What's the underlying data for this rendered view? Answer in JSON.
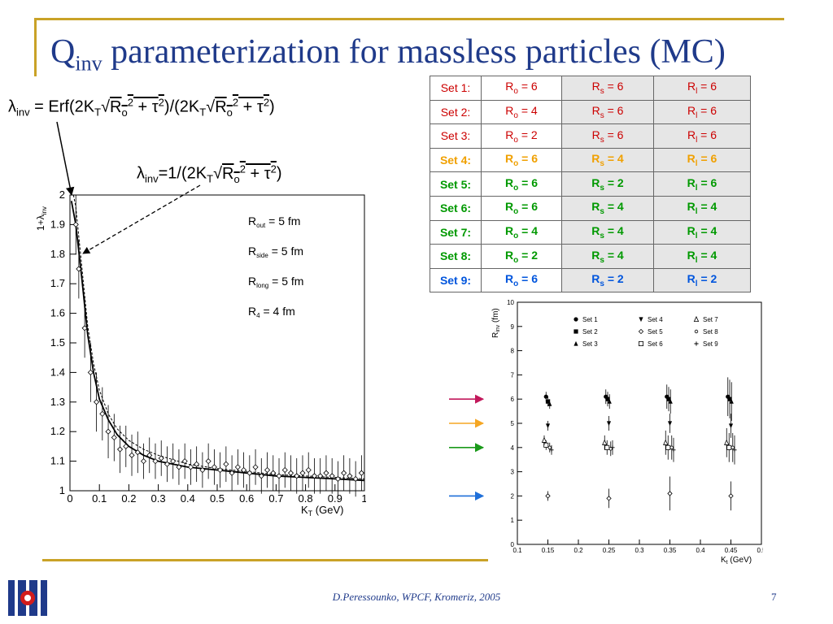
{
  "title": {
    "q": "Q",
    "q_sub": "inv",
    "rest": " parameterization for massless particles (MC)"
  },
  "formula1": {
    "a": "λ",
    "a_sub": "inv",
    "b": " = Erf(2K",
    "b_sub": "T",
    "c": "√",
    "d": "R",
    "d_sub": "o",
    "d_sup": "2",
    "e": " + τ",
    "e_sup": "2",
    "f": ")/(2K",
    "f_sub": "T",
    "g": "√",
    "h": "R",
    "h_sub": "o",
    "h_sup": "2",
    "i": " + τ",
    "i_sup": "2",
    "j": ")"
  },
  "formula2": {
    "a": "λ",
    "a_sub": "inv",
    "b": "=1/(2K",
    "b_sub": "T",
    "c": "√",
    "d": "R",
    "d_sub": "o",
    "d_sup": "2",
    "e": " + τ",
    "e_sup": "2",
    "f": ")"
  },
  "table": {
    "rows": [
      {
        "set": "Set 1:",
        "ro": "6",
        "rs": "6",
        "rl": "6",
        "color": "#cc0000",
        "bold": false
      },
      {
        "set": "Set 2:",
        "ro": "4",
        "rs": "6",
        "rl": "6",
        "color": "#cc0000",
        "bold": false
      },
      {
        "set": "Set 3:",
        "ro": "2",
        "rs": "6",
        "rl": "6",
        "color": "#cc0000",
        "bold": false
      },
      {
        "set": "Set 4:",
        "ro": "6",
        "rs": "4",
        "rl": "6",
        "color": "#f0a000",
        "bold": true
      },
      {
        "set": "Set 5:",
        "ro": "6",
        "rs": "2",
        "rl": "6",
        "color": "#009900",
        "bold": true
      },
      {
        "set": "Set 6:",
        "ro": "6",
        "rs": "4",
        "rl": "4",
        "color": "#009900",
        "bold": true
      },
      {
        "set": "Set 7:",
        "ro": "4",
        "rs": "4",
        "rl": "4",
        "color": "#009900",
        "bold": true
      },
      {
        "set": "Set 8:",
        "ro": "2",
        "rs": "4",
        "rl": "4",
        "color": "#009900",
        "bold": true
      },
      {
        "set": "Set 9:",
        "ro": "6",
        "rs": "2",
        "rl": "2",
        "color": "#0055dd",
        "bold": true
      }
    ],
    "labels": {
      "r": "R",
      "o": "o",
      "s": "s",
      "l": "l",
      "eq": " = "
    }
  },
  "chart_data": [
    {
      "type": "line",
      "ylabel": "1+λ",
      "ylabel_sub": "inv",
      "xlabel": "K",
      "xlabel_sub": "T",
      "xlabel_unit": "(GeV)",
      "xlim": [
        0,
        1
      ],
      "ylim": [
        1,
        2
      ],
      "xticks": [
        "0",
        "0.1",
        "0.2",
        "0.3",
        "0.4",
        "0.5",
        "0.6",
        "0.7",
        "0.8",
        "0.9",
        "1"
      ],
      "yticks": [
        "1",
        "1.1",
        "1.2",
        "1.3",
        "1.4",
        "1.5",
        "1.6",
        "1.7",
        "1.8",
        "1.9",
        "2"
      ],
      "annotations": [
        {
          "r": "R",
          "sub": "out",
          "val": " = 5 fm"
        },
        {
          "r": "R",
          "sub": "side",
          "val": " = 5 fm"
        },
        {
          "r": "R",
          "sub": "long",
          "val": " = 5 fm"
        },
        {
          "r": "R",
          "sub": "4",
          "val": " = 4 fm"
        }
      ],
      "series": [
        {
          "style": "solid",
          "x": [
            0.005,
            0.02,
            0.04,
            0.06,
            0.08,
            0.1,
            0.13,
            0.16,
            0.2,
            0.25,
            0.3,
            0.35,
            0.4,
            0.5,
            0.6,
            0.7,
            0.8,
            0.9,
            1.0
          ],
          "y": [
            1.98,
            1.9,
            1.72,
            1.53,
            1.4,
            1.31,
            1.24,
            1.19,
            1.15,
            1.12,
            1.1,
            1.09,
            1.08,
            1.07,
            1.06,
            1.05,
            1.045,
            1.04,
            1.035
          ]
        },
        {
          "style": "dashed",
          "x": [
            0.012,
            0.02,
            0.04,
            0.06,
            0.08,
            0.1,
            0.13,
            0.16,
            0.2,
            0.25,
            0.3,
            0.4,
            0.5,
            0.6,
            0.7,
            0.8,
            0.9,
            1.0
          ],
          "y": [
            2.0,
            1.96,
            1.76,
            1.56,
            1.43,
            1.34,
            1.26,
            1.21,
            1.17,
            1.14,
            1.12,
            1.09,
            1.075,
            1.065,
            1.055,
            1.05,
            1.045,
            1.04
          ]
        }
      ],
      "points": {
        "x": [
          0.02,
          0.03,
          0.05,
          0.07,
          0.09,
          0.11,
          0.13,
          0.15,
          0.17,
          0.19,
          0.21,
          0.23,
          0.25,
          0.27,
          0.29,
          0.31,
          0.33,
          0.35,
          0.37,
          0.39,
          0.41,
          0.43,
          0.45,
          0.47,
          0.49,
          0.51,
          0.53,
          0.55,
          0.57,
          0.59,
          0.61,
          0.63,
          0.65,
          0.67,
          0.69,
          0.71,
          0.73,
          0.75,
          0.77,
          0.79,
          0.81,
          0.83,
          0.85,
          0.87,
          0.89,
          0.91,
          0.93,
          0.95,
          0.97,
          0.99
        ],
        "y": [
          1.9,
          1.75,
          1.55,
          1.4,
          1.3,
          1.26,
          1.2,
          1.18,
          1.14,
          1.15,
          1.12,
          1.13,
          1.1,
          1.12,
          1.1,
          1.11,
          1.09,
          1.1,
          1.08,
          1.1,
          1.08,
          1.09,
          1.07,
          1.1,
          1.08,
          1.07,
          1.09,
          1.06,
          1.08,
          1.07,
          1.06,
          1.08,
          1.05,
          1.07,
          1.06,
          1.05,
          1.07,
          1.06,
          1.05,
          1.06,
          1.07,
          1.05,
          1.05,
          1.06,
          1.05,
          1.04,
          1.06,
          1.05,
          1.04,
          1.06
        ],
        "err": [
          0.1,
          0.1,
          0.1,
          0.1,
          0.1,
          0.09,
          0.09,
          0.08,
          0.08,
          0.07,
          0.07,
          0.07,
          0.06,
          0.06,
          0.06,
          0.06,
          0.06,
          0.06,
          0.06,
          0.06,
          0.06,
          0.06,
          0.06,
          0.06,
          0.06,
          0.06,
          0.06,
          0.06,
          0.06,
          0.06,
          0.06,
          0.06,
          0.06,
          0.06,
          0.06,
          0.06,
          0.06,
          0.06,
          0.06,
          0.06,
          0.06,
          0.06,
          0.06,
          0.06,
          0.06,
          0.06,
          0.06,
          0.06,
          0.06,
          0.06
        ]
      }
    },
    {
      "type": "scatter",
      "ylabel": "R",
      "ylabel_sub": "inv",
      "ylabel_unit": "(fm)",
      "xlabel": "K",
      "xlabel_sub": "t",
      "xlabel_unit": "(GeV)",
      "xlim": [
        0.1,
        0.5
      ],
      "ylim": [
        0,
        10
      ],
      "xticks": [
        "0.1",
        "0.15",
        "0.2",
        "0.25",
        "0.3",
        "0.35",
        "0.4",
        "0.45",
        "0.5"
      ],
      "yticks": [
        "0",
        "1",
        "2",
        "3",
        "4",
        "5",
        "6",
        "7",
        "8",
        "9",
        "10"
      ],
      "legend": [
        "Set 1",
        "Set 4",
        "Set 7",
        "Set 2",
        "Set 5",
        "Set 8",
        "Set 3",
        "Set 6",
        "Set 9"
      ],
      "legend_markers": [
        "circle",
        "tri-down",
        "tri-open",
        "square",
        "diamond-open",
        "star-open",
        "tri-up",
        "square-open",
        "cross-open"
      ],
      "series": [
        {
          "name": "Set 1",
          "marker": "circle",
          "x": [
            0.147,
            0.245,
            0.345,
            0.445
          ],
          "y": [
            6.1,
            6.1,
            6.1,
            6.1
          ],
          "err": [
            0.2,
            0.3,
            0.5,
            0.8
          ]
        },
        {
          "name": "Set 2",
          "marker": "square",
          "x": [
            0.15,
            0.248,
            0.348,
            0.448
          ],
          "y": [
            5.9,
            6.0,
            6.0,
            6.0
          ],
          "err": [
            0.2,
            0.3,
            0.5,
            0.8
          ]
        },
        {
          "name": "Set 3",
          "marker": "tri-up",
          "x": [
            0.153,
            0.251,
            0.351,
            0.451
          ],
          "y": [
            5.8,
            5.9,
            5.9,
            5.9
          ],
          "err": [
            0.2,
            0.3,
            0.5,
            0.8
          ]
        },
        {
          "name": "Set 4",
          "marker": "tri-down",
          "x": [
            0.15,
            0.25,
            0.35,
            0.45
          ],
          "y": [
            4.9,
            5.0,
            5.0,
            4.9
          ],
          "err": [
            0.2,
            0.3,
            0.4,
            0.5
          ]
        },
        {
          "name": "Set 5",
          "marker": "diamond-open",
          "x": [
            0.15,
            0.25,
            0.35,
            0.45
          ],
          "y": [
            2.0,
            1.9,
            2.1,
            2.0
          ],
          "err": [
            0.2,
            0.4,
            0.7,
            0.6
          ]
        },
        {
          "name": "Set 6",
          "marker": "square-open",
          "x": [
            0.147,
            0.247,
            0.347,
            0.447
          ],
          "y": [
            4.1,
            4.0,
            4.0,
            4.0
          ],
          "err": [
            0.2,
            0.3,
            0.5,
            0.6
          ]
        },
        {
          "name": "Set 7",
          "marker": "tri-open",
          "x": [
            0.144,
            0.243,
            0.343,
            0.443
          ],
          "y": [
            4.3,
            4.2,
            4.2,
            4.2
          ],
          "err": [
            0.2,
            0.3,
            0.5,
            0.6
          ]
        },
        {
          "name": "Set 8",
          "marker": "star-open",
          "x": [
            0.153,
            0.253,
            0.353,
            0.453
          ],
          "y": [
            4.0,
            3.95,
            4.0,
            4.0
          ],
          "err": [
            0.2,
            0.3,
            0.5,
            0.6
          ]
        },
        {
          "name": "Set 9",
          "marker": "cross-open",
          "x": [
            0.156,
            0.256,
            0.356,
            0.456
          ],
          "y": [
            3.9,
            4.0,
            3.9,
            3.9
          ],
          "err": [
            0.2,
            0.3,
            0.5,
            0.6
          ]
        }
      ],
      "arrows": [
        {
          "y": 6.0,
          "color": "#c2185b"
        },
        {
          "y": 5.0,
          "color": "#f5a623"
        },
        {
          "y": 4.0,
          "color": "#1a9a1a"
        },
        {
          "y": 2.0,
          "color": "#1e6fd9"
        }
      ]
    }
  ],
  "footer": {
    "text": "D.Peressounko, WPCF, Kromeriz, 2005",
    "page": "7"
  },
  "colors": {
    "title": "#1f3a8a",
    "accent": "#c9a227"
  }
}
